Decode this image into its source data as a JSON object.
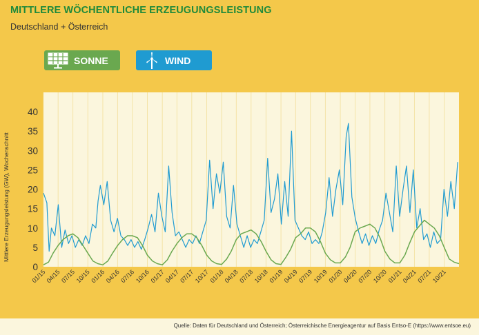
{
  "header": {
    "title": "MITTLERE WÖCHENTLICHE ERZEUGUNGSLEISTUNG",
    "subtitle": "Deutschland + Österreich"
  },
  "legend": {
    "sonne": {
      "label": "SONNE",
      "icon": "solar-panel-icon",
      "color": "#6aa84f"
    },
    "wind": {
      "label": "WIND",
      "icon": "wind-turbine-icon",
      "color": "#1f9bd1"
    }
  },
  "footer": {
    "source": "Quelle: Daten für Deutschland und Österreich; Österreichische Energieagentur auf Basis Entso-E (https://www.entsoe.eu)"
  },
  "chart_data": {
    "type": "line",
    "ylabel": "Mittlere Erzeugungsleistung (GW), Wochenschnitt",
    "ylim": [
      0,
      45
    ],
    "yticks": [
      0,
      5,
      10,
      15,
      20,
      25,
      30,
      35,
      40
    ],
    "grid": "vertical",
    "xlim": [
      "2015-01-01",
      "2021-12-31"
    ],
    "xticks": [
      "01/15",
      "04/15",
      "07/15",
      "10/15",
      "01/16",
      "04/16",
      "07/16",
      "10/16",
      "01/17",
      "04/17",
      "07/17",
      "10/17",
      "01/18",
      "04/18",
      "07/18",
      "10/18",
      "01/19",
      "04/19",
      "07/19",
      "10/19",
      "01/20",
      "04/20",
      "07/20",
      "10/20",
      "01/21",
      "04/21",
      "07/21",
      "10/21"
    ],
    "series": [
      {
        "name": "WIND",
        "color": "#1f9bd1",
        "points": [
          [
            "2015-01-01",
            19
          ],
          [
            "2015-01-22",
            16.5
          ],
          [
            "2015-02-05",
            4
          ],
          [
            "2015-02-19",
            10
          ],
          [
            "2015-03-12",
            8
          ],
          [
            "2015-04-02",
            16
          ],
          [
            "2015-04-23",
            5
          ],
          [
            "2015-05-14",
            9.5
          ],
          [
            "2015-06-04",
            6
          ],
          [
            "2015-06-25",
            8
          ],
          [
            "2015-07-16",
            5
          ],
          [
            "2015-08-06",
            7
          ],
          [
            "2015-08-27",
            5.5
          ],
          [
            "2015-09-17",
            8
          ],
          [
            "2015-10-08",
            6
          ],
          [
            "2015-10-29",
            11
          ],
          [
            "2015-11-19",
            10
          ],
          [
            "2015-12-03",
            17
          ],
          [
            "2015-12-17",
            21
          ],
          [
            "2016-01-07",
            16
          ],
          [
            "2016-01-28",
            22
          ],
          [
            "2016-02-18",
            12
          ],
          [
            "2016-03-10",
            9
          ],
          [
            "2016-03-31",
            12.5
          ],
          [
            "2016-04-21",
            8
          ],
          [
            "2016-05-12",
            7
          ],
          [
            "2016-06-02",
            5.5
          ],
          [
            "2016-06-23",
            7
          ],
          [
            "2016-07-14",
            5
          ],
          [
            "2016-08-04",
            6.5
          ],
          [
            "2016-08-25",
            4.5
          ],
          [
            "2016-09-15",
            7
          ],
          [
            "2016-10-06",
            10
          ],
          [
            "2016-10-27",
            13.5
          ],
          [
            "2016-11-17",
            9
          ],
          [
            "2016-12-08",
            19
          ],
          [
            "2016-12-29",
            13
          ],
          [
            "2017-01-19",
            9
          ],
          [
            "2017-02-09",
            26
          ],
          [
            "2017-03-02",
            14
          ],
          [
            "2017-03-23",
            8
          ],
          [
            "2017-04-13",
            9
          ],
          [
            "2017-05-04",
            7
          ],
          [
            "2017-05-25",
            5
          ],
          [
            "2017-06-15",
            7
          ],
          [
            "2017-07-06",
            6
          ],
          [
            "2017-07-27",
            8
          ],
          [
            "2017-08-17",
            6
          ],
          [
            "2017-09-07",
            9
          ],
          [
            "2017-09-28",
            12
          ],
          [
            "2017-10-19",
            27.5
          ],
          [
            "2017-11-09",
            15
          ],
          [
            "2017-11-30",
            24
          ],
          [
            "2017-12-21",
            19
          ],
          [
            "2018-01-11",
            27
          ],
          [
            "2018-02-01",
            13
          ],
          [
            "2018-02-22",
            10
          ],
          [
            "2018-03-15",
            21
          ],
          [
            "2018-04-05",
            11
          ],
          [
            "2018-04-26",
            8
          ],
          [
            "2018-05-17",
            5
          ],
          [
            "2018-06-07",
            8
          ],
          [
            "2018-06-28",
            5
          ],
          [
            "2018-07-19",
            7
          ],
          [
            "2018-08-09",
            6
          ],
          [
            "2018-08-30",
            9
          ],
          [
            "2018-09-20",
            12
          ],
          [
            "2018-10-11",
            28
          ],
          [
            "2018-11-01",
            14
          ],
          [
            "2018-11-22",
            17.5
          ],
          [
            "2018-12-13",
            24
          ],
          [
            "2019-01-03",
            11
          ],
          [
            "2019-01-24",
            22
          ],
          [
            "2019-02-14",
            13
          ],
          [
            "2019-03-07",
            35
          ],
          [
            "2019-03-28",
            12
          ],
          [
            "2019-04-18",
            10
          ],
          [
            "2019-05-09",
            8
          ],
          [
            "2019-05-30",
            7
          ],
          [
            "2019-06-20",
            9
          ],
          [
            "2019-07-11",
            6
          ],
          [
            "2019-08-01",
            7
          ],
          [
            "2019-08-22",
            6
          ],
          [
            "2019-09-12",
            9
          ],
          [
            "2019-10-03",
            14
          ],
          [
            "2019-10-24",
            23
          ],
          [
            "2019-11-14",
            13
          ],
          [
            "2019-12-05",
            20
          ],
          [
            "2019-12-26",
            25
          ],
          [
            "2020-01-16",
            16
          ],
          [
            "2020-02-06",
            33.5
          ],
          [
            "2020-02-20",
            37
          ],
          [
            "2020-03-12",
            18
          ],
          [
            "2020-04-02",
            12.5
          ],
          [
            "2020-04-23",
            9
          ],
          [
            "2020-05-14",
            6
          ],
          [
            "2020-06-04",
            8.5
          ],
          [
            "2020-06-25",
            5.5
          ],
          [
            "2020-07-16",
            8
          ],
          [
            "2020-08-06",
            6
          ],
          [
            "2020-08-27",
            9.5
          ],
          [
            "2020-09-17",
            12
          ],
          [
            "2020-10-08",
            19
          ],
          [
            "2020-10-29",
            14
          ],
          [
            "2020-11-19",
            9
          ],
          [
            "2020-12-10",
            26
          ],
          [
            "2020-12-31",
            13
          ],
          [
            "2021-01-21",
            20
          ],
          [
            "2021-02-11",
            26
          ],
          [
            "2021-03-04",
            14
          ],
          [
            "2021-03-25",
            25
          ],
          [
            "2021-04-15",
            10
          ],
          [
            "2021-05-06",
            15
          ],
          [
            "2021-05-27",
            7
          ],
          [
            "2021-06-17",
            8.5
          ],
          [
            "2021-07-08",
            5
          ],
          [
            "2021-07-29",
            9
          ],
          [
            "2021-08-19",
            6
          ],
          [
            "2021-09-09",
            7
          ],
          [
            "2021-09-30",
            20
          ],
          [
            "2021-10-21",
            13
          ],
          [
            "2021-11-11",
            22
          ],
          [
            "2021-12-02",
            15
          ],
          [
            "2021-12-23",
            27
          ]
        ]
      },
      {
        "name": "SONNE",
        "color": "#6aa84f",
        "points": [
          [
            "2015-01-01",
            0.5
          ],
          [
            "2015-02-01",
            1.2
          ],
          [
            "2015-03-01",
            3.5
          ],
          [
            "2015-04-01",
            5.5
          ],
          [
            "2015-05-01",
            7
          ],
          [
            "2015-06-01",
            8
          ],
          [
            "2015-07-01",
            8.5
          ],
          [
            "2015-08-01",
            7.5
          ],
          [
            "2015-09-01",
            5.5
          ],
          [
            "2015-10-01",
            3.5
          ],
          [
            "2015-11-01",
            1.5
          ],
          [
            "2015-12-01",
            0.8
          ],
          [
            "2016-01-01",
            0.5
          ],
          [
            "2016-02-01",
            1.5
          ],
          [
            "2016-03-01",
            3.5
          ],
          [
            "2016-04-01",
            5.5
          ],
          [
            "2016-05-01",
            7
          ],
          [
            "2016-06-01",
            8
          ],
          [
            "2016-07-01",
            8
          ],
          [
            "2016-08-01",
            7.5
          ],
          [
            "2016-09-01",
            5.5
          ],
          [
            "2016-10-01",
            3
          ],
          [
            "2016-11-01",
            1.5
          ],
          [
            "2016-12-01",
            0.8
          ],
          [
            "2017-01-01",
            0.5
          ],
          [
            "2017-02-01",
            1.8
          ],
          [
            "2017-03-01",
            4
          ],
          [
            "2017-04-01",
            6
          ],
          [
            "2017-05-01",
            7.5
          ],
          [
            "2017-06-01",
            8.5
          ],
          [
            "2017-07-01",
            8.5
          ],
          [
            "2017-08-01",
            7.5
          ],
          [
            "2017-09-01",
            5.5
          ],
          [
            "2017-10-01",
            3
          ],
          [
            "2017-11-01",
            1.5
          ],
          [
            "2017-12-01",
            0.8
          ],
          [
            "2018-01-01",
            0.6
          ],
          [
            "2018-02-01",
            2
          ],
          [
            "2018-03-01",
            4
          ],
          [
            "2018-04-01",
            7
          ],
          [
            "2018-05-01",
            8.5
          ],
          [
            "2018-06-01",
            9
          ],
          [
            "2018-07-01",
            9.5
          ],
          [
            "2018-08-01",
            8.5
          ],
          [
            "2018-09-01",
            6.5
          ],
          [
            "2018-10-01",
            4
          ],
          [
            "2018-11-01",
            1.8
          ],
          [
            "2018-12-01",
            0.8
          ],
          [
            "2019-01-01",
            0.6
          ],
          [
            "2019-02-01",
            2.5
          ],
          [
            "2019-03-01",
            4.5
          ],
          [
            "2019-04-01",
            7.5
          ],
          [
            "2019-05-01",
            8.5
          ],
          [
            "2019-06-01",
            10
          ],
          [
            "2019-07-01",
            10
          ],
          [
            "2019-08-01",
            9
          ],
          [
            "2019-09-01",
            6.5
          ],
          [
            "2019-10-01",
            3.5
          ],
          [
            "2019-11-01",
            1.8
          ],
          [
            "2019-12-01",
            1
          ],
          [
            "2020-01-01",
            1
          ],
          [
            "2020-02-01",
            2.5
          ],
          [
            "2020-03-01",
            5
          ],
          [
            "2020-04-01",
            9
          ],
          [
            "2020-05-01",
            10
          ],
          [
            "2020-06-01",
            10.5
          ],
          [
            "2020-07-01",
            11
          ],
          [
            "2020-08-01",
            10
          ],
          [
            "2020-09-01",
            7.5
          ],
          [
            "2020-10-01",
            4
          ],
          [
            "2020-11-01",
            2
          ],
          [
            "2020-12-01",
            1
          ],
          [
            "2021-01-01",
            1
          ],
          [
            "2021-02-01",
            3
          ],
          [
            "2021-03-01",
            6
          ],
          [
            "2021-04-01",
            9
          ],
          [
            "2021-05-01",
            10.5
          ],
          [
            "2021-06-01",
            12
          ],
          [
            "2021-07-01",
            11
          ],
          [
            "2021-08-01",
            10
          ],
          [
            "2021-09-01",
            8
          ],
          [
            "2021-10-01",
            5
          ],
          [
            "2021-11-01",
            2
          ],
          [
            "2021-12-01",
            1.2
          ],
          [
            "2021-12-31",
            0.8
          ]
        ]
      }
    ]
  }
}
